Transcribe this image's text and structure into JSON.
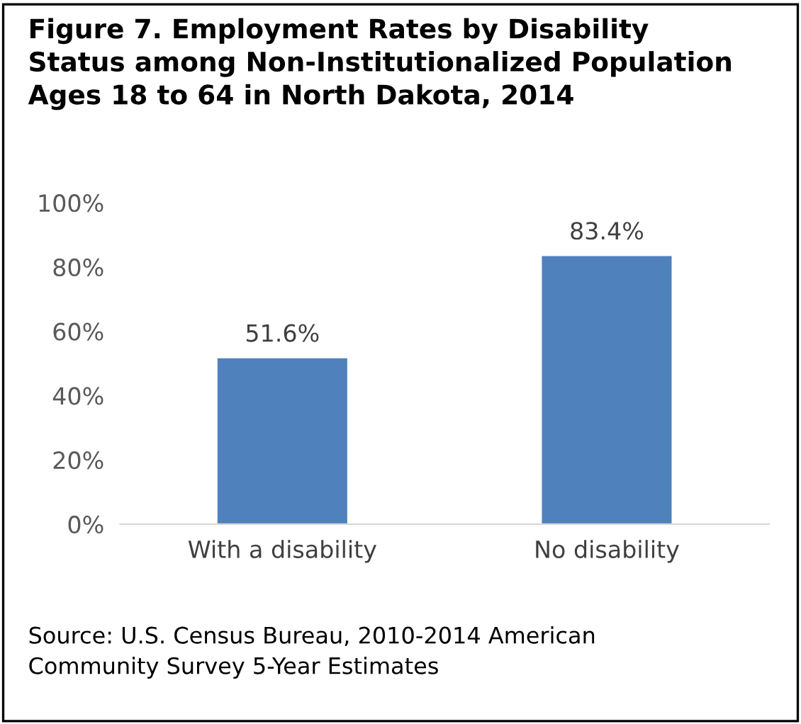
{
  "chart_data": {
    "type": "bar",
    "title": "Figure 7. Employment Rates by Disability\nStatus among Non-Institutionalized Population\nAges 18 to 64 in North Dakota, 2014",
    "categories": [
      "With a disability",
      "No disability"
    ],
    "values": [
      51.6,
      83.4
    ],
    "color": "#4f81bd",
    "value_labels": [
      "51.6%",
      "83.4%"
    ],
    "ylim": [
      0,
      100
    ],
    "yticks": [
      {
        "value": 0,
        "label": "0%"
      },
      {
        "value": 20,
        "label": "20%"
      },
      {
        "value": 40,
        "label": "40%"
      },
      {
        "value": 60,
        "label": "60%"
      },
      {
        "value": 80,
        "label": "80%"
      },
      {
        "value": 100,
        "label": "100%"
      }
    ],
    "grid": false,
    "annotations": [
      "Source: U.S. Census Bureau, 2010-2014 American\nCommunity Survey 5-Year Estimates"
    ]
  }
}
